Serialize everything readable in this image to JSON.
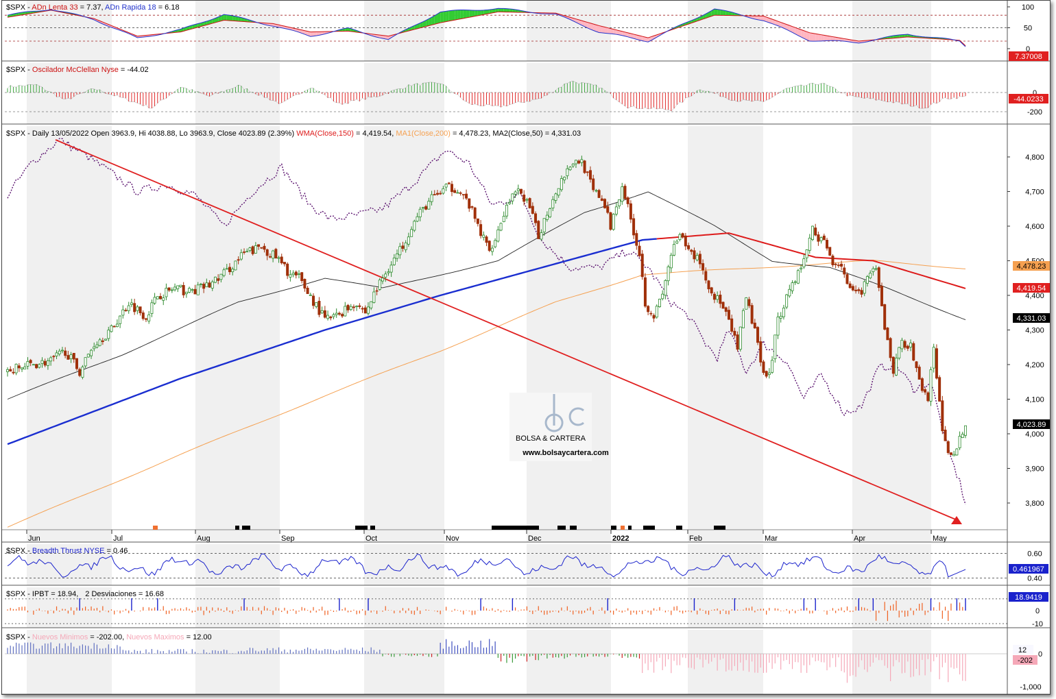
{
  "colors": {
    "bull": "#2e8b2e",
    "bear": "#a0300a",
    "wma": "#dd1a1a",
    "ma1": "#f5a050",
    "ma2": "#222222",
    "mainBlue": "#1a2ed0",
    "purple": "#5c1470",
    "trend": "#e02020"
  },
  "months": [
    "Jun",
    "Jul",
    "Aug",
    "Sep",
    "Oct",
    "Nov",
    "Dec",
    "2022",
    "Feb",
    "Mar",
    "Apr",
    "May"
  ],
  "panel1": {
    "title_sym": "$SPX - ",
    "title_a": "ADn Lenta 33",
    "title_a_val": " = 7.37, ",
    "title_b": "ADn Rapida 18",
    "title_b_val": " = 6.18",
    "ticks": [
      "100",
      "50",
      "0"
    ],
    "tag": "7.37008"
  },
  "panel2": {
    "title_sym": "$SPX - ",
    "title_a": "Oscilador McClellan Nyse",
    "title_a_val": " = -44.02",
    "ticks": [
      "0",
      "-200"
    ],
    "tag": "-44.0233"
  },
  "main": {
    "title_sym": "$SPX - Daily 13/05/2022 Open 3963.9, Hi 4038.88, Lo 3963.9, Close 4023.89 (2.39%) ",
    "wma": "WMA(Close,150)",
    "wma_val": " = 4,419.54, ",
    "ma1": "MA1(Close,200)",
    "ma1_val": " = 4,478.23, ",
    "ma2": "MA2(Close,50) = 4,331.03",
    "ticks": [
      "4,800",
      "4,700",
      "4,600",
      "4,500",
      "4,400",
      "4,300",
      "4,200",
      "4,100",
      "4,000",
      "3,900",
      "3,800"
    ],
    "tags": {
      "ma1": "4,478.23",
      "wma": "4,419.54",
      "ma2": "4,331.03",
      "close": "4,023.89"
    },
    "watermark_brand": "BOLSA & CARTERA",
    "watermark_url": "www.bolsaycartera.com"
  },
  "panel4": {
    "title_sym": "$SPX - ",
    "title_a": "Breadth Thrust NYSE",
    "title_a_val": " = 0.46",
    "ticks": [
      "0.60",
      "0.40"
    ],
    "tag": "0.461967"
  },
  "panel5": {
    "title_sym": "$SPX - ",
    "title_a": "IPBT = 18.94,",
    "title_b": "2 Desviaciones = 16.68",
    "ticks": [
      "10",
      "0",
      "-10"
    ],
    "tag": "18.9419"
  },
  "panel6": {
    "title_sym": "$SPX - ",
    "title_a": "Nuevos Minimos",
    "title_a_val": " = -202.00, ",
    "title_b": "Nuevos Maximos",
    "title_b_val": " = 12.00",
    "ticks": [
      "0",
      "-1,000"
    ],
    "tag_max": "12",
    "tag_min": "-202"
  },
  "chart_data": {
    "type": "candlestick",
    "symbol": "$SPX",
    "date": "13/05/2022",
    "ohlc": {
      "open": 3963.9,
      "high": 4038.88,
      "low": 3963.9,
      "close": 4023.89,
      "change_pct": 2.39
    },
    "indicators": {
      "WMA150": 4419.54,
      "MA200": 4478.23,
      "MA50": 4331.03,
      "ADn_Lenta_33": 7.37,
      "ADn_Rapida_18": 6.18,
      "McClellan": -44.02,
      "Breadth_Thrust": 0.46,
      "IPBT": 18.94,
      "Desviaciones_2": 16.68,
      "Nuevos_Minimos": -202,
      "Nuevos_Maximos": 12
    },
    "ylim": [
      3720,
      4850
    ],
    "close_path": [
      [
        0,
        4180
      ],
      [
        8,
        4200
      ],
      [
        15,
        4210
      ],
      [
        20,
        4240
      ],
      [
        25,
        4180
      ],
      [
        30,
        4260
      ],
      [
        36,
        4300
      ],
      [
        42,
        4380
      ],
      [
        48,
        4340
      ],
      [
        52,
        4400
      ],
      [
        58,
        4420
      ],
      [
        63,
        4410
      ],
      [
        70,
        4430
      ],
      [
        76,
        4470
      ],
      [
        82,
        4520
      ],
      [
        88,
        4540
      ],
      [
        93,
        4510
      ],
      [
        98,
        4460
      ],
      [
        101,
        4450
      ],
      [
        104,
        4410
      ],
      [
        107,
        4370
      ],
      [
        110,
        4330
      ],
      [
        114,
        4340
      ],
      [
        117,
        4360
      ],
      [
        121,
        4380
      ],
      [
        124,
        4350
      ],
      [
        128,
        4420
      ],
      [
        132,
        4480
      ],
      [
        136,
        4530
      ],
      [
        140,
        4600
      ],
      [
        144,
        4650
      ],
      [
        147,
        4680
      ],
      [
        152,
        4710
      ],
      [
        156,
        4710
      ],
      [
        160,
        4660
      ],
      [
        164,
        4580
      ],
      [
        167,
        4530
      ],
      [
        170,
        4590
      ],
      [
        174,
        4680
      ],
      [
        178,
        4700
      ],
      [
        181,
        4650
      ],
      [
        184,
        4570
      ],
      [
        187,
        4640
      ],
      [
        191,
        4720
      ],
      [
        195,
        4780
      ],
      [
        199,
        4790
      ],
      [
        203,
        4700
      ],
      [
        206,
        4680
      ],
      [
        209,
        4600
      ],
      [
        213,
        4720
      ],
      [
        216,
        4620
      ],
      [
        219,
        4520
      ],
      [
        221,
        4380
      ],
      [
        224,
        4340
      ],
      [
        227,
        4400
      ],
      [
        230,
        4520
      ],
      [
        233,
        4570
      ],
      [
        236,
        4530
      ],
      [
        240,
        4500
      ],
      [
        243,
        4420
      ],
      [
        247,
        4380
      ],
      [
        250,
        4320
      ],
      [
        253,
        4250
      ],
      [
        256,
        4390
      ],
      [
        259,
        4300
      ],
      [
        261,
        4200
      ],
      [
        264,
        4170
      ],
      [
        267,
        4330
      ],
      [
        271,
        4420
      ],
      [
        275,
        4480
      ],
      [
        279,
        4590
      ],
      [
        283,
        4550
      ],
      [
        286,
        4500
      ],
      [
        289,
        4490
      ],
      [
        292,
        4410
      ],
      [
        295,
        4400
      ],
      [
        298,
        4450
      ],
      [
        301,
        4470
      ],
      [
        304,
        4310
      ],
      [
        307,
        4180
      ],
      [
        310,
        4270
      ],
      [
        313,
        4250
      ],
      [
        316,
        4150
      ],
      [
        319,
        4100
      ],
      [
        321,
        4250
      ],
      [
        324,
        4000
      ],
      [
        327,
        3930
      ],
      [
        330,
        3990
      ],
      [
        332,
        4023.89
      ]
    ],
    "ma50_path": [
      [
        0,
        4100
      ],
      [
        40,
        4230
      ],
      [
        80,
        4380
      ],
      [
        110,
        4450
      ],
      [
        130,
        4420
      ],
      [
        170,
        4500
      ],
      [
        200,
        4640
      ],
      [
        222,
        4700
      ],
      [
        245,
        4600
      ],
      [
        265,
        4500
      ],
      [
        285,
        4480
      ],
      [
        305,
        4420
      ],
      [
        332,
        4331
      ]
    ],
    "wma150_path": [
      [
        0,
        3970
      ],
      [
        60,
        4160
      ],
      [
        110,
        4300
      ],
      [
        150,
        4400
      ],
      [
        185,
        4480
      ],
      [
        220,
        4560
      ],
      [
        250,
        4580
      ],
      [
        280,
        4510
      ],
      [
        300,
        4500
      ],
      [
        332,
        4420
      ]
    ],
    "ma200_path": [
      [
        0,
        3730
      ],
      [
        60,
        3940
      ],
      [
        110,
        4110
      ],
      [
        150,
        4240
      ],
      [
        190,
        4380
      ],
      [
        220,
        4460
      ],
      [
        260,
        4480
      ],
      [
        300,
        4500
      ],
      [
        332,
        4478
      ]
    ],
    "trendline": [
      [
        0,
        4850
      ],
      [
        318,
        3780
      ]
    ]
  }
}
